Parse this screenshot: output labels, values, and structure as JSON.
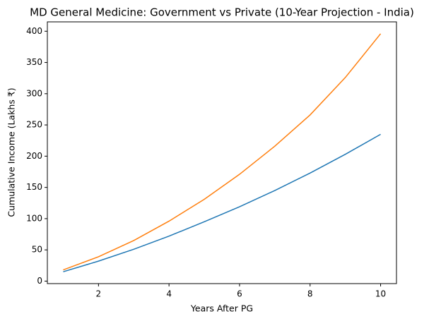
{
  "chart_data": {
    "type": "line",
    "title": "MD General Medicine: Government vs Private (10-Year Projection - India)",
    "x_label": "Years After PG",
    "y_label": "Cumulative Income (Lakhs ₹)",
    "x": [
      1,
      2,
      3,
      4,
      5,
      6,
      7,
      8,
      9,
      10
    ],
    "series": [
      {
        "color": "#1f77b4",
        "values": [
          15,
          32,
          51,
          72,
          95,
          119,
          145,
          173,
          203,
          235
        ]
      },
      {
        "color": "#ff7f0e",
        "values": [
          18,
          39,
          65,
          96,
          131,
          171,
          216,
          266,
          326,
          396
        ]
      }
    ],
    "xlim": [
      0.55,
      10.45
    ],
    "xticks": [
      2,
      4,
      6,
      8,
      10
    ],
    "ylim": [
      -4,
      415
    ],
    "yticks": [
      0,
      50,
      100,
      150,
      200,
      250,
      300,
      350,
      400
    ],
    "grid": false
  }
}
